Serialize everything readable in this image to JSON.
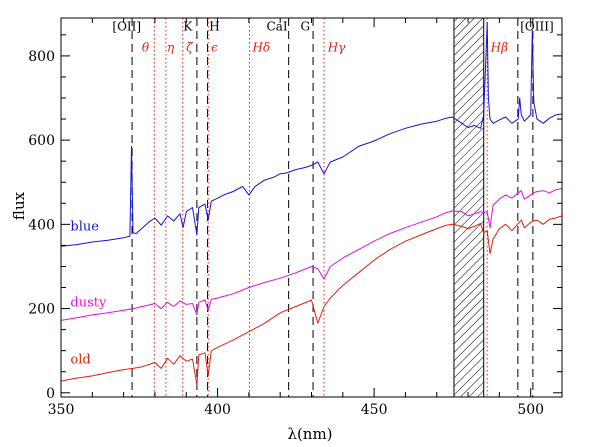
{
  "chart_data": {
    "type": "line",
    "title": "",
    "xlabel": "λ(nm)",
    "ylabel": "flux",
    "xlim": [
      350,
      510
    ],
    "ylim": [
      -10,
      890
    ],
    "x_ticks": [
      350,
      400,
      450,
      500
    ],
    "y_ticks": [
      0,
      200,
      400,
      600,
      800
    ],
    "grid": false,
    "series": [
      {
        "name": "blue",
        "color": "#1414d8",
        "label_at": [
          353,
          385
        ],
        "x": [
          350,
          355,
          360,
          365,
          370,
          372,
          372.5,
          373,
          374,
          375,
          378,
          380,
          382,
          384,
          386,
          388,
          389,
          390,
          392,
          393.4,
          394,
          396,
          397,
          398,
          400,
          402,
          405,
          408,
          410,
          412,
          415,
          418,
          420,
          422,
          425,
          428,
          430,
          432,
          434,
          436,
          440,
          445,
          450,
          455,
          460,
          465,
          470,
          473,
          475,
          478,
          480,
          482,
          484,
          485,
          486.1,
          486.5,
          487,
          488,
          490,
          492,
          494,
          496,
          496.5,
          497,
          498,
          500,
          500.5,
          501,
          502,
          504,
          506,
          508,
          510
        ],
        "y": [
          348,
          352,
          358,
          362,
          368,
          372,
          585,
          380,
          378,
          385,
          405,
          415,
          398,
          420,
          408,
          425,
          392,
          430,
          440,
          375,
          440,
          448,
          410,
          455,
          462,
          470,
          478,
          490,
          470,
          490,
          505,
          512,
          520,
          522,
          530,
          535,
          540,
          548,
          520,
          548,
          560,
          585,
          598,
          615,
          628,
          638,
          645,
          652,
          655,
          640,
          630,
          635,
          628,
          660,
          880,
          700,
          650,
          640,
          648,
          655,
          640,
          650,
          700,
          660,
          645,
          660,
          860,
          690,
          650,
          640,
          652,
          660,
          662
        ]
      },
      {
        "name": "dusty",
        "color": "#e010e0",
        "label_at": [
          353,
          205
        ],
        "x": [
          350,
          355,
          360,
          365,
          370,
          373,
          376,
          380,
          382,
          384,
          386,
          388,
          390,
          392,
          393.4,
          394,
          396,
          397,
          398,
          400,
          405,
          410,
          415,
          420,
          425,
          430,
          432,
          434,
          436,
          440,
          445,
          450,
          455,
          460,
          465,
          470,
          473,
          475,
          478,
          480,
          482,
          484,
          485,
          486.1,
          487,
          488,
          490,
          492,
          494,
          496,
          497,
          498,
          500,
          501,
          502,
          504,
          506,
          508,
          510
        ],
        "y": [
          172,
          178,
          185,
          190,
          196,
          200,
          205,
          212,
          200,
          215,
          205,
          218,
          210,
          212,
          185,
          215,
          220,
          195,
          222,
          225,
          235,
          250,
          262,
          272,
          285,
          300,
          295,
          270,
          300,
          320,
          340,
          360,
          378,
          392,
          405,
          418,
          428,
          432,
          430,
          420,
          425,
          430,
          428,
          430,
          392,
          445,
          460,
          470,
          462,
          475,
          480,
          460,
          470,
          475,
          478,
          480,
          475,
          482,
          485
        ]
      },
      {
        "name": "old",
        "color": "#e02010",
        "label_at": [
          353,
          70
        ],
        "x": [
          350,
          355,
          360,
          365,
          370,
          373,
          376,
          380,
          382,
          384,
          386,
          388,
          390,
          392,
          393.4,
          394,
          396,
          397,
          398,
          400,
          405,
          410,
          415,
          420,
          425,
          430,
          432,
          434,
          436,
          440,
          445,
          450,
          455,
          460,
          465,
          470,
          473,
          475,
          478,
          480,
          482,
          484,
          485,
          486.1,
          487,
          488,
          490,
          492,
          494,
          496,
          497,
          498,
          500,
          501,
          502,
          504,
          506,
          508,
          510
        ],
        "y": [
          28,
          35,
          40,
          48,
          55,
          58,
          62,
          72,
          58,
          82,
          68,
          88,
          75,
          80,
          18,
          90,
          95,
          40,
          100,
          108,
          125,
          145,
          165,
          190,
          205,
          220,
          165,
          205,
          225,
          255,
          285,
          315,
          340,
          360,
          375,
          390,
          398,
          400,
          395,
          390,
          395,
          402,
          380,
          385,
          330,
          365,
          390,
          400,
          385,
          402,
          410,
          392,
          405,
          408,
          410,
          400,
          412,
          415,
          420
        ]
      }
    ],
    "spectral_lines": [
      {
        "label": "[OII]",
        "x": 372.7,
        "color": "#000000",
        "style": "dashed",
        "label_x": 371,
        "label_y": 860
      },
      {
        "label": "θ",
        "x": 379.8,
        "color": "#e02010",
        "style": "dotted",
        "label_x": 377,
        "label_y": 810
      },
      {
        "label": "η",
        "x": 383.5,
        "color": "#e02010",
        "style": "dotted",
        "label_x": 385,
        "label_y": 810
      },
      {
        "label": "K",
        "x": 393.4,
        "color": "#000000",
        "style": "dashed",
        "label_x": 390.5,
        "label_y": 860
      },
      {
        "label": "ζ",
        "x": 388.9,
        "color": "#e02010",
        "style": "dotted",
        "label_x": 391,
        "label_y": 810
      },
      {
        "label": "H",
        "x": 396.8,
        "color": "#000000",
        "style": "dashed",
        "label_x": 399,
        "label_y": 860
      },
      {
        "label": "ϵ",
        "x": 397.0,
        "color": "#e02010",
        "style": "dotted",
        "label_x": 399,
        "label_y": 810
      },
      {
        "label": "CaI",
        "x": 422.7,
        "color": "#000000",
        "style": "dashed",
        "label_x": 419,
        "label_y": 860
      },
      {
        "label": "G",
        "x": 430.5,
        "color": "#000000",
        "style": "dashed",
        "label_x": 428,
        "label_y": 860
      },
      {
        "label": "Hδ",
        "x": 410.2,
        "color": "#e02010",
        "style": "dotted",
        "label_x": 414,
        "label_y": 810
      },
      {
        "label": "Hγ",
        "x": 434.0,
        "color": "#e02010",
        "style": "dotted",
        "label_x": 438,
        "label_y": 810
      },
      {
        "label": "Hβ",
        "x": 486.1,
        "color": "#e02010",
        "style": "dotted",
        "label_x": 490,
        "label_y": 810
      },
      {
        "label": "[OIII]",
        "x": 495.9,
        "color": "#000000",
        "style": "dashed",
        "label_x": 502,
        "label_y": 860
      },
      {
        "label": "",
        "x": 500.7,
        "color": "#000000",
        "style": "dashed"
      }
    ],
    "masked_region": [
      475.5,
      485.0
    ]
  }
}
